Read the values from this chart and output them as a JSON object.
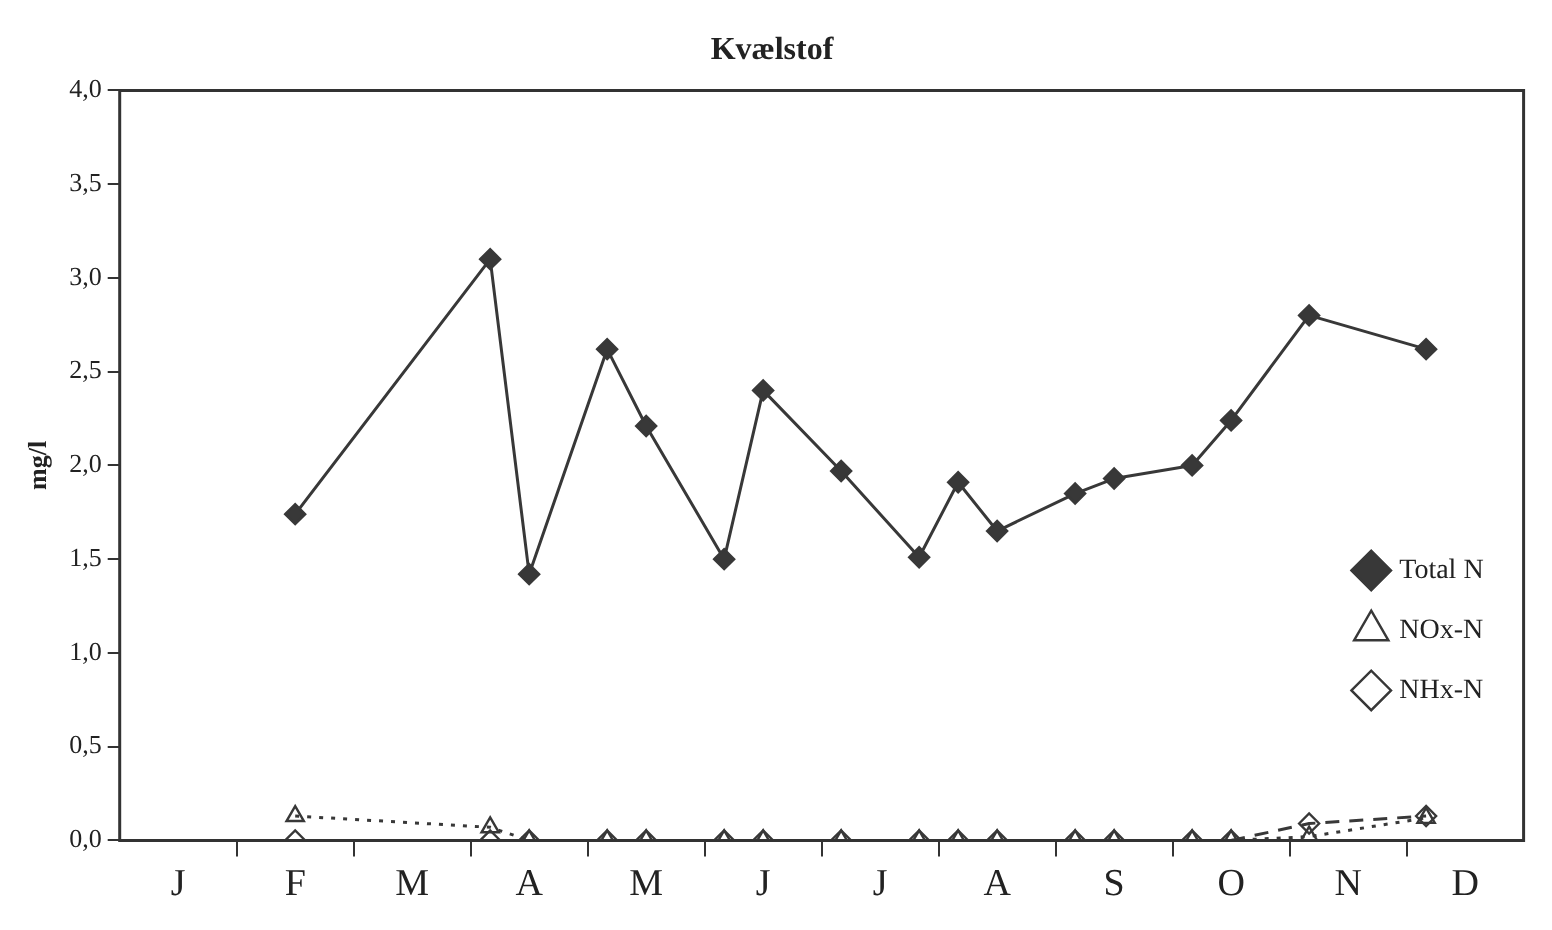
{
  "chart_data": {
    "type": "line",
    "title": "Kvælstof",
    "ylabel": "mg/l",
    "categories": [
      null,
      "J",
      null,
      null,
      "F",
      null,
      null,
      "M",
      null,
      null,
      "A",
      null,
      null,
      "M",
      null,
      null,
      "J",
      null,
      null,
      "J",
      null,
      null,
      "A",
      null,
      null,
      "S",
      null,
      null,
      "O",
      null,
      null,
      "N",
      null,
      null,
      "D",
      null
    ],
    "ylim": [
      0,
      4
    ],
    "yticks": [
      {
        "value": 0,
        "label": "0,0"
      },
      {
        "value": 0.5,
        "label": "0,5"
      },
      {
        "value": 1,
        "label": "1,0"
      },
      {
        "value": 1.5,
        "label": "1,5"
      },
      {
        "value": 2,
        "label": "2,0"
      },
      {
        "value": 2.5,
        "label": "2,5"
      },
      {
        "value": 3,
        "label": "3,0"
      },
      {
        "value": 3.5,
        "label": "3,5"
      },
      {
        "value": 4,
        "label": "4,0"
      }
    ],
    "grid": false,
    "legend": "right",
    "series": [
      {
        "name": "Total N",
        "color": "#383838",
        "marker": "diamond",
        "line_style": "solid",
        "values": [
          null,
          null,
          null,
          null,
          1.74,
          null,
          null,
          null,
          null,
          3.1,
          1.42,
          null,
          2.62,
          2.21,
          null,
          1.5,
          2.4,
          null,
          1.97,
          null,
          1.51,
          1.91,
          1.65,
          null,
          1.85,
          1.93,
          null,
          2.0,
          2.24,
          null,
          2.8,
          null,
          null,
          2.62,
          null,
          null
        ]
      },
      {
        "name": "NOx-N",
        "color": "#383838",
        "marker": "triangle",
        "line_style": "dotted",
        "values": [
          null,
          null,
          null,
          null,
          0.13,
          null,
          null,
          null,
          null,
          0.07,
          0,
          null,
          0,
          0,
          null,
          0,
          0,
          null,
          0,
          null,
          0,
          0,
          0,
          null,
          0,
          0,
          null,
          0,
          0,
          null,
          0.02,
          null,
          null,
          0.12,
          null,
          null
        ]
      },
      {
        "name": "NHx-N",
        "color": "#383838",
        "marker": "diamond",
        "line_style": "dashed",
        "values": [
          null,
          null,
          null,
          null,
          0,
          null,
          null,
          null,
          null,
          0,
          0,
          null,
          0,
          0,
          null,
          0,
          0,
          null,
          0,
          null,
          0,
          0,
          0,
          null,
          0,
          0,
          null,
          0,
          0,
          null,
          0.09,
          null,
          null,
          0.13,
          null,
          null
        ]
      }
    ]
  }
}
